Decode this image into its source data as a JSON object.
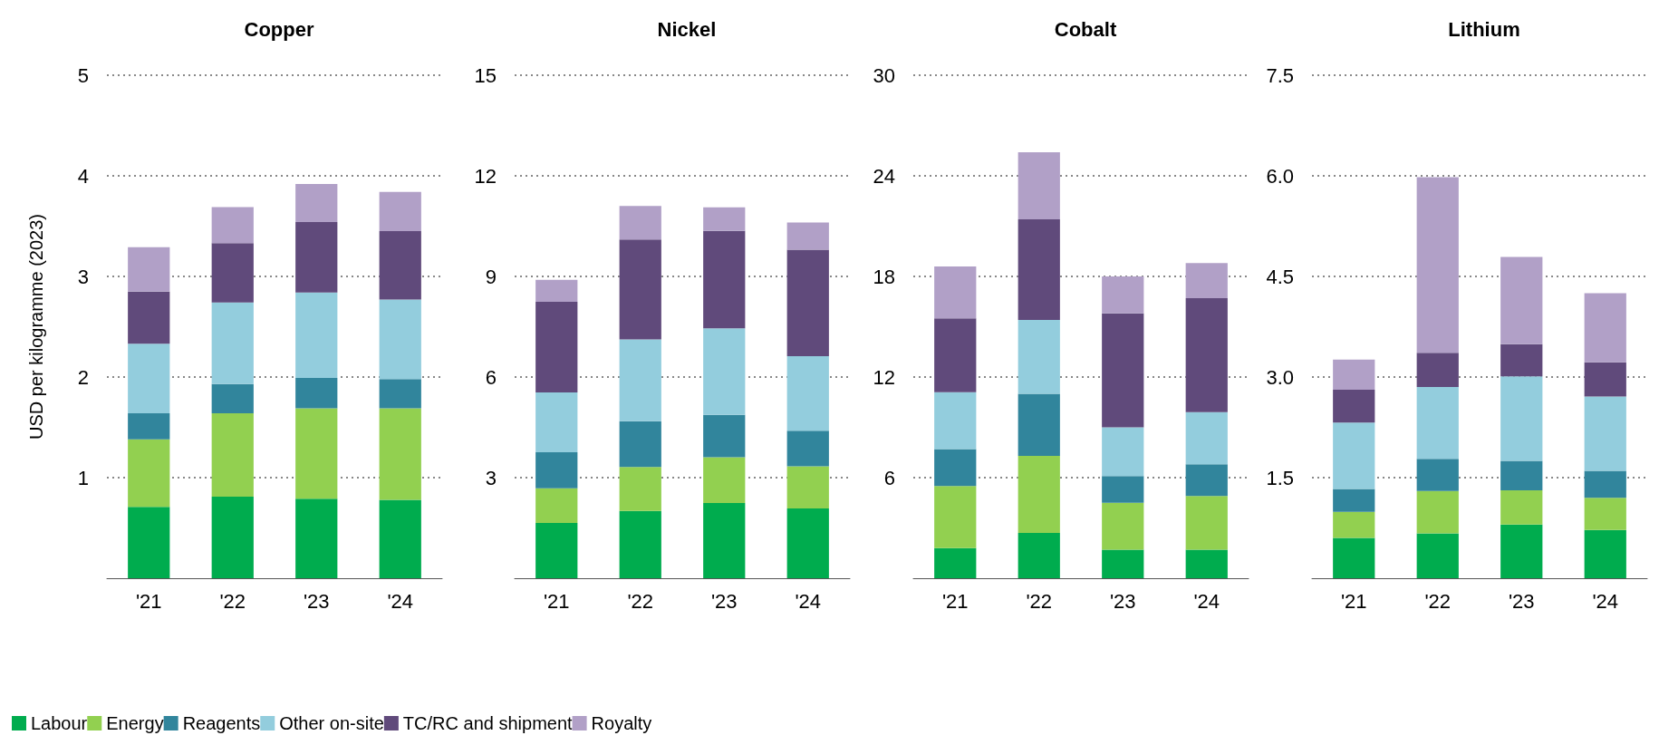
{
  "chart_data": [
    {
      "type": "bar",
      "title": "Copper",
      "ylabel": "USD per kilogramme (2023)",
      "stacked": true,
      "grid": "y",
      "legend": "bottom",
      "categories": [
        "'21",
        "'22",
        "'23",
        "'24"
      ],
      "ylim": [
        0,
        5
      ],
      "yticks": [
        1,
        2,
        3,
        4,
        5
      ],
      "series": [
        {
          "name": "Labour",
          "color": "#00ac4e",
          "values": [
            0.71,
            0.81,
            0.79,
            0.78
          ]
        },
        {
          "name": "Energy",
          "color": "#92d050",
          "values": [
            0.67,
            0.83,
            0.9,
            0.91
          ]
        },
        {
          "name": "Reagents",
          "color": "#31859c",
          "values": [
            0.26,
            0.29,
            0.3,
            0.29
          ]
        },
        {
          "name": "Other on-site",
          "color": "#93cddd",
          "values": [
            0.69,
            0.81,
            0.85,
            0.79
          ]
        },
        {
          "name": "TC/RC and shipment",
          "color": "#604a7b",
          "values": [
            0.52,
            0.59,
            0.7,
            0.68
          ]
        },
        {
          "name": "Royalty",
          "color": "#b1a0c7",
          "values": [
            0.44,
            0.36,
            0.38,
            0.39
          ]
        }
      ]
    },
    {
      "type": "bar",
      "title": "Nickel",
      "stacked": true,
      "grid": "y",
      "categories": [
        "'21",
        "'22",
        "'23",
        "'24"
      ],
      "ylim": [
        0,
        15
      ],
      "yticks": [
        3,
        6,
        9,
        12,
        15
      ],
      "series": [
        {
          "color": "#00ac4e",
          "values": [
            1.65,
            2.01,
            2.24,
            2.08
          ]
        },
        {
          "color": "#92d050",
          "values": [
            1.03,
            1.31,
            1.37,
            1.26
          ]
        },
        {
          "color": "#31859c",
          "values": [
            1.08,
            1.36,
            1.26,
            1.06
          ]
        },
        {
          "color": "#93cddd",
          "values": [
            1.78,
            2.44,
            2.58,
            2.22
          ]
        },
        {
          "color": "#604a7b",
          "values": [
            2.7,
            2.98,
            2.91,
            3.18
          ]
        },
        {
          "color": "#b1a0c7",
          "values": [
            0.66,
            1.0,
            0.7,
            0.81
          ]
        }
      ]
    },
    {
      "type": "bar",
      "title": "Cobalt",
      "stacked": true,
      "grid": "y",
      "categories": [
        "'21",
        "'22",
        "'23",
        "'24"
      ],
      "ylim": [
        0,
        30
      ],
      "yticks": [
        6,
        12,
        18,
        24,
        30
      ],
      "series": [
        {
          "color": "#00ac4e",
          "values": [
            1.8,
            2.7,
            1.7,
            1.7
          ]
        },
        {
          "color": "#92d050",
          "values": [
            3.7,
            4.6,
            2.8,
            3.2
          ]
        },
        {
          "color": "#31859c",
          "values": [
            2.2,
            3.7,
            1.6,
            1.9
          ]
        },
        {
          "color": "#93cddd",
          "values": [
            3.4,
            4.4,
            2.9,
            3.1
          ]
        },
        {
          "color": "#604a7b",
          "values": [
            4.4,
            6.0,
            6.8,
            6.8
          ]
        },
        {
          "color": "#b1a0c7",
          "values": [
            3.1,
            4.0,
            2.2,
            2.1
          ]
        }
      ]
    },
    {
      "type": "bar",
      "title": "Lithium",
      "stacked": true,
      "grid": "y",
      "categories": [
        "'21",
        "'22",
        "'23",
        "'24"
      ],
      "ylim": [
        0,
        7.5
      ],
      "yticks": [
        1.5,
        {
          "value": 3,
          "label": "3.0"
        },
        4.5,
        {
          "value": 6,
          "label": "6.0"
        },
        7.5
      ],
      "series": [
        {
          "color": "#00ac4e",
          "values": [
            0.6,
            0.67,
            0.8,
            0.72
          ]
        },
        {
          "color": "#92d050",
          "values": [
            0.39,
            0.63,
            0.51,
            0.48
          ]
        },
        {
          "color": "#31859c",
          "values": [
            0.34,
            0.48,
            0.44,
            0.4
          ]
        },
        {
          "color": "#93cddd",
          "values": [
            0.99,
            1.07,
            1.26,
            1.11
          ]
        },
        {
          "color": "#604a7b",
          "values": [
            0.49,
            0.51,
            0.48,
            0.51
          ]
        },
        {
          "color": "#b1a0c7",
          "values": [
            0.45,
            2.62,
            1.3,
            1.03
          ]
        }
      ]
    }
  ]
}
